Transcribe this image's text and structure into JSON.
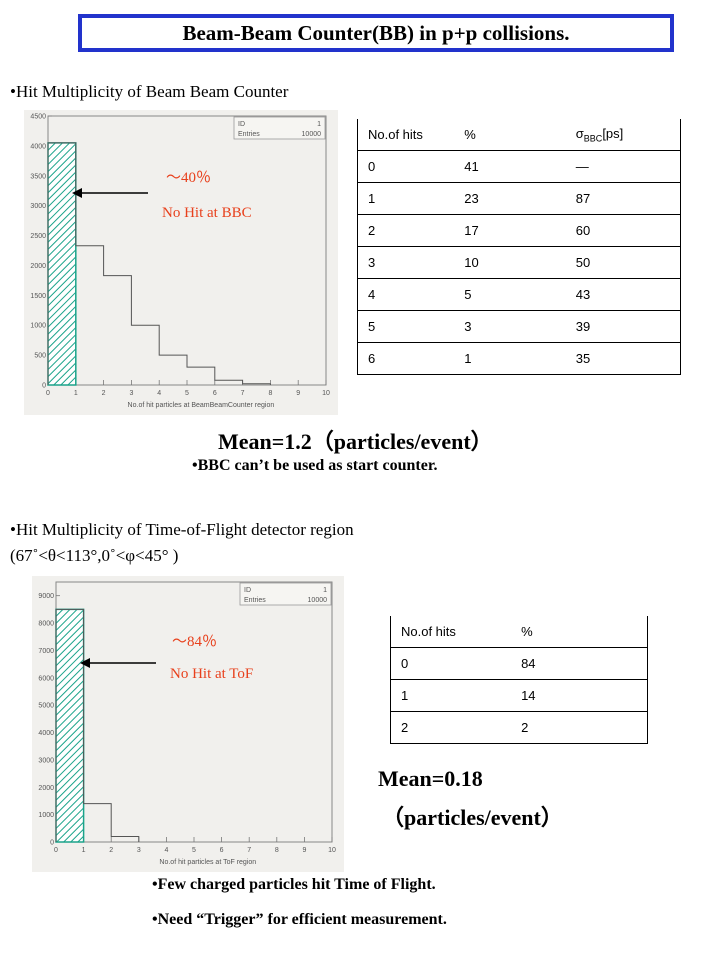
{
  "title": "Beam-Beam Counter(BB) in p+p collisions.",
  "section1": {
    "bullet": "Hit Multiplicity of Beam Beam Counter",
    "note_pct": "～40％",
    "note_text": "No Hit at BBC",
    "mean": "Mean=1.2（particles/event）",
    "conclusion": "BBC can’t be used as start counter."
  },
  "section2": {
    "bullet_line1": "Hit Multiplicity of Time-of-Flight detector region",
    "bullet_line2": "(67˚<θ<113°,0˚<φ<45° )",
    "note_pct": "～84％",
    "note_text": "No Hit at ToF",
    "mean_line1": "Mean=0.18",
    "mean_line2": "（particles/event）",
    "conclusion1": "Few charged particles hit Time of Flight.",
    "conclusion2": "Need “Trigger” for efficient measurement."
  },
  "table1": {
    "headers": [
      "No.of hits",
      "%",
      "σBBC[ps]"
    ],
    "rows": [
      [
        "0",
        "41",
        "—"
      ],
      [
        "1",
        "23",
        "87"
      ],
      [
        "2",
        "17",
        "60"
      ],
      [
        "3",
        "10",
        "50"
      ],
      [
        "4",
        "5",
        "43"
      ],
      [
        "5",
        "3",
        "39"
      ],
      [
        "6",
        "1",
        "35"
      ]
    ]
  },
  "table2": {
    "headers": [
      "No.of hits",
      "%"
    ],
    "rows": [
      [
        "0",
        "84"
      ],
      [
        "1",
        "14"
      ],
      [
        "2",
        "2"
      ]
    ]
  },
  "chart_data": [
    {
      "type": "bar",
      "title": "",
      "xlabel": "No.of hit particles at BeamBeamCounter region",
      "ylabel": "",
      "stats": {
        "ID": "1",
        "Entries": "10000"
      },
      "x_ticks": [
        "0",
        "1",
        "2",
        "3",
        "4",
        "5",
        "6",
        "7",
        "8",
        "9",
        "10"
      ],
      "y_ticks": [
        "0",
        "500",
        "1000",
        "1500",
        "2000",
        "2500",
        "3000",
        "3500",
        "4000",
        "4500"
      ],
      "xlim": [
        0,
        10
      ],
      "ylim": [
        0,
        4500
      ],
      "bins": [
        0,
        1,
        2,
        3,
        4,
        5,
        6,
        7
      ],
      "values": [
        4050,
        2330,
        1830,
        1000,
        500,
        300,
        80,
        20
      ],
      "highlight_bin": 0,
      "fill_color": "#1aa38a"
    },
    {
      "type": "bar",
      "title": "",
      "xlabel": "No.of hit particles at ToF region",
      "ylabel": "",
      "stats": {
        "ID": "1",
        "Entries": "10000"
      },
      "x_ticks": [
        "0",
        "1",
        "2",
        "3",
        "4",
        "5",
        "6",
        "7",
        "8",
        "9",
        "10"
      ],
      "y_ticks": [
        "0",
        "1000",
        "2000",
        "3000",
        "4000",
        "5000",
        "6000",
        "7000",
        "8000",
        "9000"
      ],
      "xlim": [
        0,
        10
      ],
      "ylim": [
        0,
        9500
      ],
      "bins": [
        0,
        1,
        2
      ],
      "values": [
        8500,
        1400,
        200
      ],
      "highlight_bin": 0,
      "fill_color": "#1aa38a"
    }
  ]
}
